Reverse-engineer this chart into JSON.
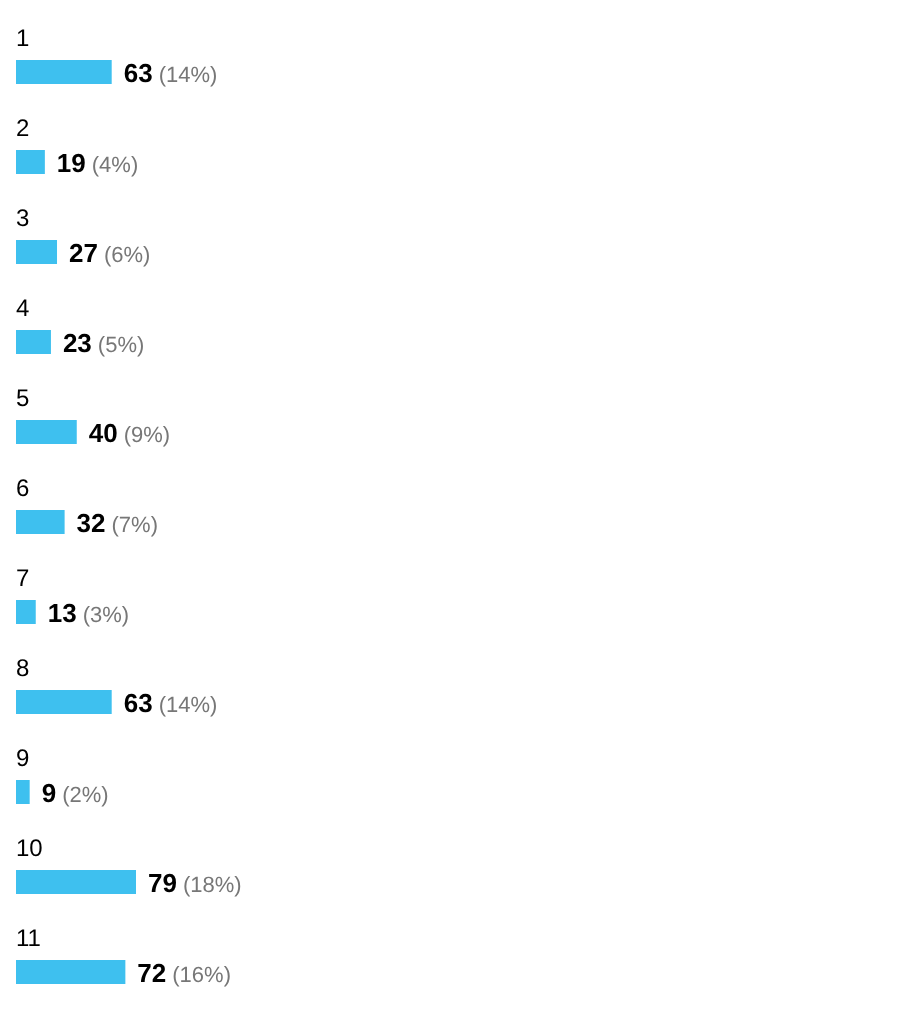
{
  "chart_data": {
    "type": "bar",
    "orientation": "horizontal",
    "categories": [
      "1",
      "2",
      "3",
      "4",
      "5",
      "6",
      "7",
      "8",
      "9",
      "10",
      "11"
    ],
    "values": [
      63,
      19,
      27,
      23,
      40,
      32,
      13,
      63,
      9,
      79,
      72
    ],
    "value_labels": [
      "63 (14%)",
      "19 (4%)",
      "27 (6%)",
      "23 (5%)",
      "40 (9%)",
      "32 (7%)",
      "13 (3%)",
      "63 (14%)",
      "9 (2%)",
      "79 (18%)",
      "72 (16%)"
    ],
    "color": "#3ec0ef"
  }
}
